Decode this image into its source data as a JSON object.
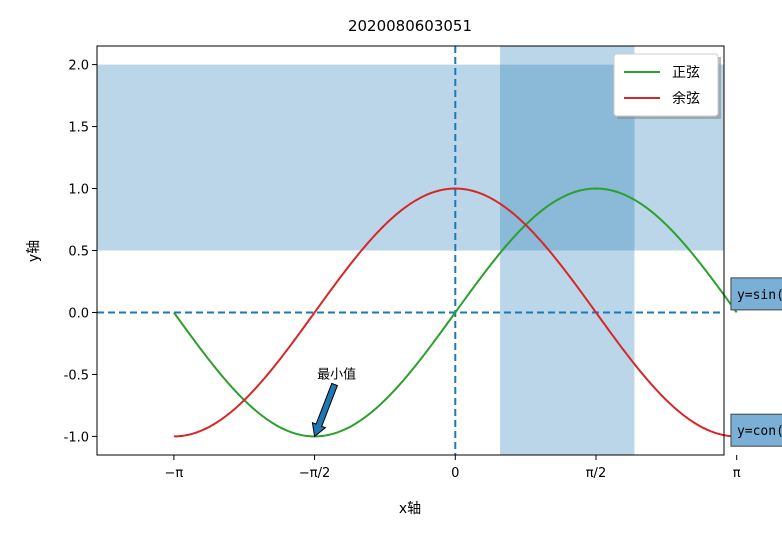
{
  "chart_data": {
    "type": "line",
    "title": "2020080603051",
    "xlabel": "x轴",
    "ylabel": "y轴",
    "xlim": [
      -4.0,
      3.0
    ],
    "ylim": [
      -1.15,
      2.15
    ],
    "x_ticks": [
      {
        "value": -3.14159,
        "label": "−π"
      },
      {
        "value": -1.5708,
        "label": "−π/2"
      },
      {
        "value": 0,
        "label": "0"
      },
      {
        "value": 1.5708,
        "label": "π/2"
      },
      {
        "value": 3.14159,
        "label": "π"
      }
    ],
    "y_ticks": [
      {
        "value": -1.0,
        "label": "-1.0"
      },
      {
        "value": -0.5,
        "label": "-0.5"
      },
      {
        "value": 0.0,
        "label": "0.0"
      },
      {
        "value": 0.5,
        "label": "0.5"
      },
      {
        "value": 1.0,
        "label": "1.0"
      },
      {
        "value": 1.5,
        "label": "1.5"
      },
      {
        "value": 2.0,
        "label": "2.0"
      }
    ],
    "x_range_start": -3.14159,
    "x_range_end": 3.14159,
    "series": [
      {
        "name": "正弦",
        "function": "sin",
        "color": "#2ca02c"
      },
      {
        "name": "余弦",
        "function": "cos",
        "color": "#d62728"
      }
    ],
    "reference_lines": {
      "vertical_x": 0,
      "horizontal_y": 0,
      "color": "#1f77b4",
      "style": "dashed"
    },
    "spans": [
      {
        "orientation": "horizontal",
        "from": 0.5,
        "to": 2.0,
        "color": "#1f77b4",
        "alpha": 0.3
      },
      {
        "orientation": "vertical",
        "from": 0.5,
        "to": 2.0,
        "color": "#1f77b4",
        "alpha": 0.3
      }
    ],
    "annotation": {
      "text": "最小值",
      "target": [
        -1.5708,
        -1.0
      ],
      "text_at": [
        -1.5708,
        -0.5
      ]
    },
    "text_boxes": [
      {
        "text": "y=sin(x)",
        "at": [
          3.1,
          0.15
        ]
      },
      {
        "text": "y=con(x)",
        "at": [
          3.1,
          -0.95
        ]
      }
    ],
    "legend": {
      "placement": "upper right"
    }
  }
}
